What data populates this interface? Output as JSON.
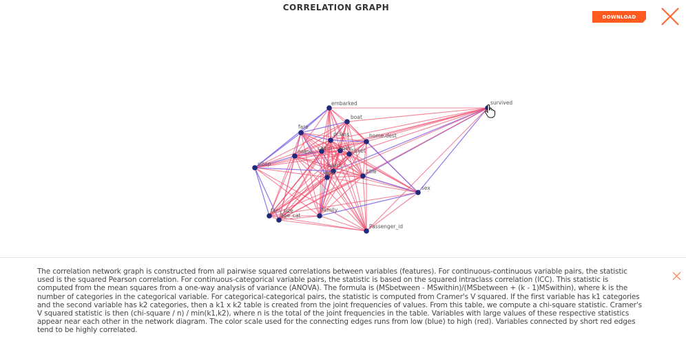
{
  "header": {
    "title": "CORRELATION GRAPH",
    "download_label": "DOWNLOAD",
    "close_icon": "close-icon",
    "accent_color": "#ff5a1f"
  },
  "graph": {
    "edge_colors": {
      "low": "#7b5ce6",
      "high": "#f0506e"
    },
    "node_color": "#1e2a78",
    "nodes": [
      {
        "id": "embarked",
        "label": "embarked"
      },
      {
        "id": "survived",
        "label": "survived"
      },
      {
        "id": "boat",
        "label": "boat"
      },
      {
        "id": "fare",
        "label": "fare"
      },
      {
        "id": "pclass",
        "label": "pclass"
      },
      {
        "id": "home_dest",
        "label": "home.dest"
      },
      {
        "id": "name",
        "label": "name"
      },
      {
        "id": "cabin",
        "label": "cabin"
      },
      {
        "id": "body",
        "label": "body"
      },
      {
        "id": "ticket",
        "label": "ticket"
      },
      {
        "id": "sibsp",
        "label": "sibsp"
      },
      {
        "id": "parch",
        "label": "parch"
      },
      {
        "id": "title",
        "label": "title"
      },
      {
        "id": "sex",
        "label": "sex"
      },
      {
        "id": "age",
        "label": "age"
      },
      {
        "id": "fam_size",
        "label": "fam_size"
      },
      {
        "id": "age_cat",
        "label": "age_cat"
      },
      {
        "id": "family",
        "label": "family"
      },
      {
        "id": "passenger_id",
        "label": "Passenger_id"
      }
    ]
  },
  "info": {
    "text": "The correlation network graph is constructed from all pairwise squared correlations between variables (features). For continuous-continuous variable pairs, the statistic used is the squared Pearson correlation. For continuous-categorical variable pairs, the statistic is based on the squared intraclass correlation (ICC). This statistic is computed from the mean squares from a one-way analysis of variance (ANOVA). The formula is (MSbetween - MSwithin)/(MSbetween + (k - 1)MSwithin), where k is the number of categories in the categorical variable. For categorical-categorical pairs, the statistic is computed from Cramer's V squared. If the first variable has k1 categories and the second variable has k2 categories, then a k1 x k2 table is created from the joint frequencies of values. From this table, we compute a chi-square statistic. Cramer's V squared statistic is then (chi-square / n) / min(k1,k2), where n is the total of the joint frequencies in the table. Variables with large values of these respective statistics appear near each other in the network diagram. The color scale used for the connecting edges runs from low (blue) to high (red). Variables connected by short red edges tend to be highly correlated.",
    "close_icon": "close-icon"
  }
}
